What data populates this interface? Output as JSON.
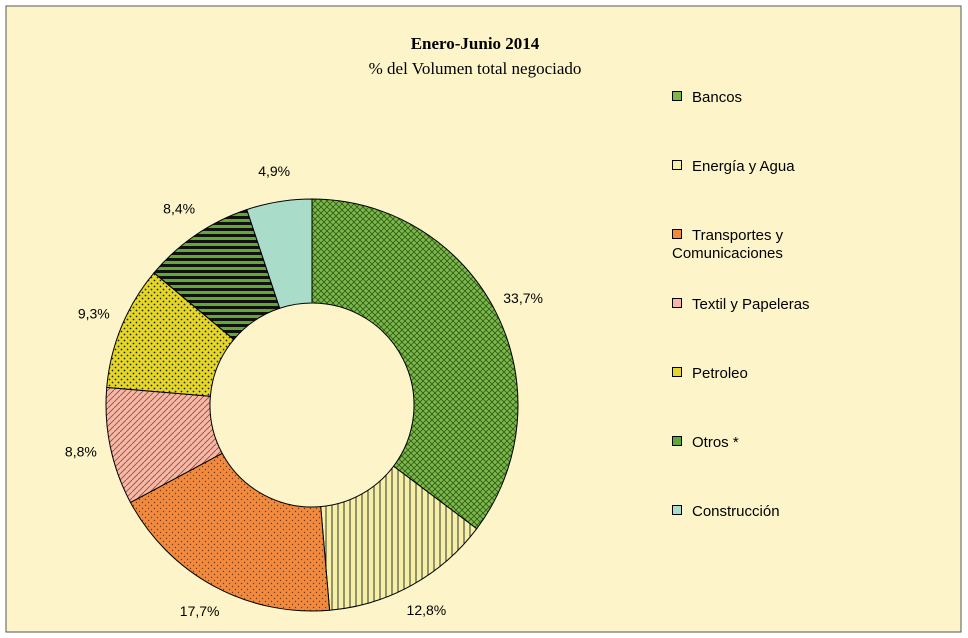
{
  "chart_data": {
    "type": "donut",
    "title": "Enero-Junio 2014",
    "subtitle": "% del Volumen total negociado",
    "categories": [
      "Bancos",
      "Energía y Agua",
      "Transportes y Comunicaciones",
      "Textil y Papeleras",
      "Petroleo",
      "Otros *",
      "Construcción"
    ],
    "values": [
      33.7,
      12.8,
      17.7,
      8.8,
      9.3,
      8.4,
      4.9
    ],
    "value_labels": [
      "33,7%",
      "12,8%",
      "17,7%",
      "8,8%",
      "9,3%",
      "8,4%",
      "4,9%"
    ],
    "colors": [
      "#7cb84a",
      "#f6f0a6",
      "#f08a3e",
      "#f6b8a6",
      "#e4d62a",
      "#62a834",
      "#a9dcc9"
    ],
    "legend": "right"
  }
}
